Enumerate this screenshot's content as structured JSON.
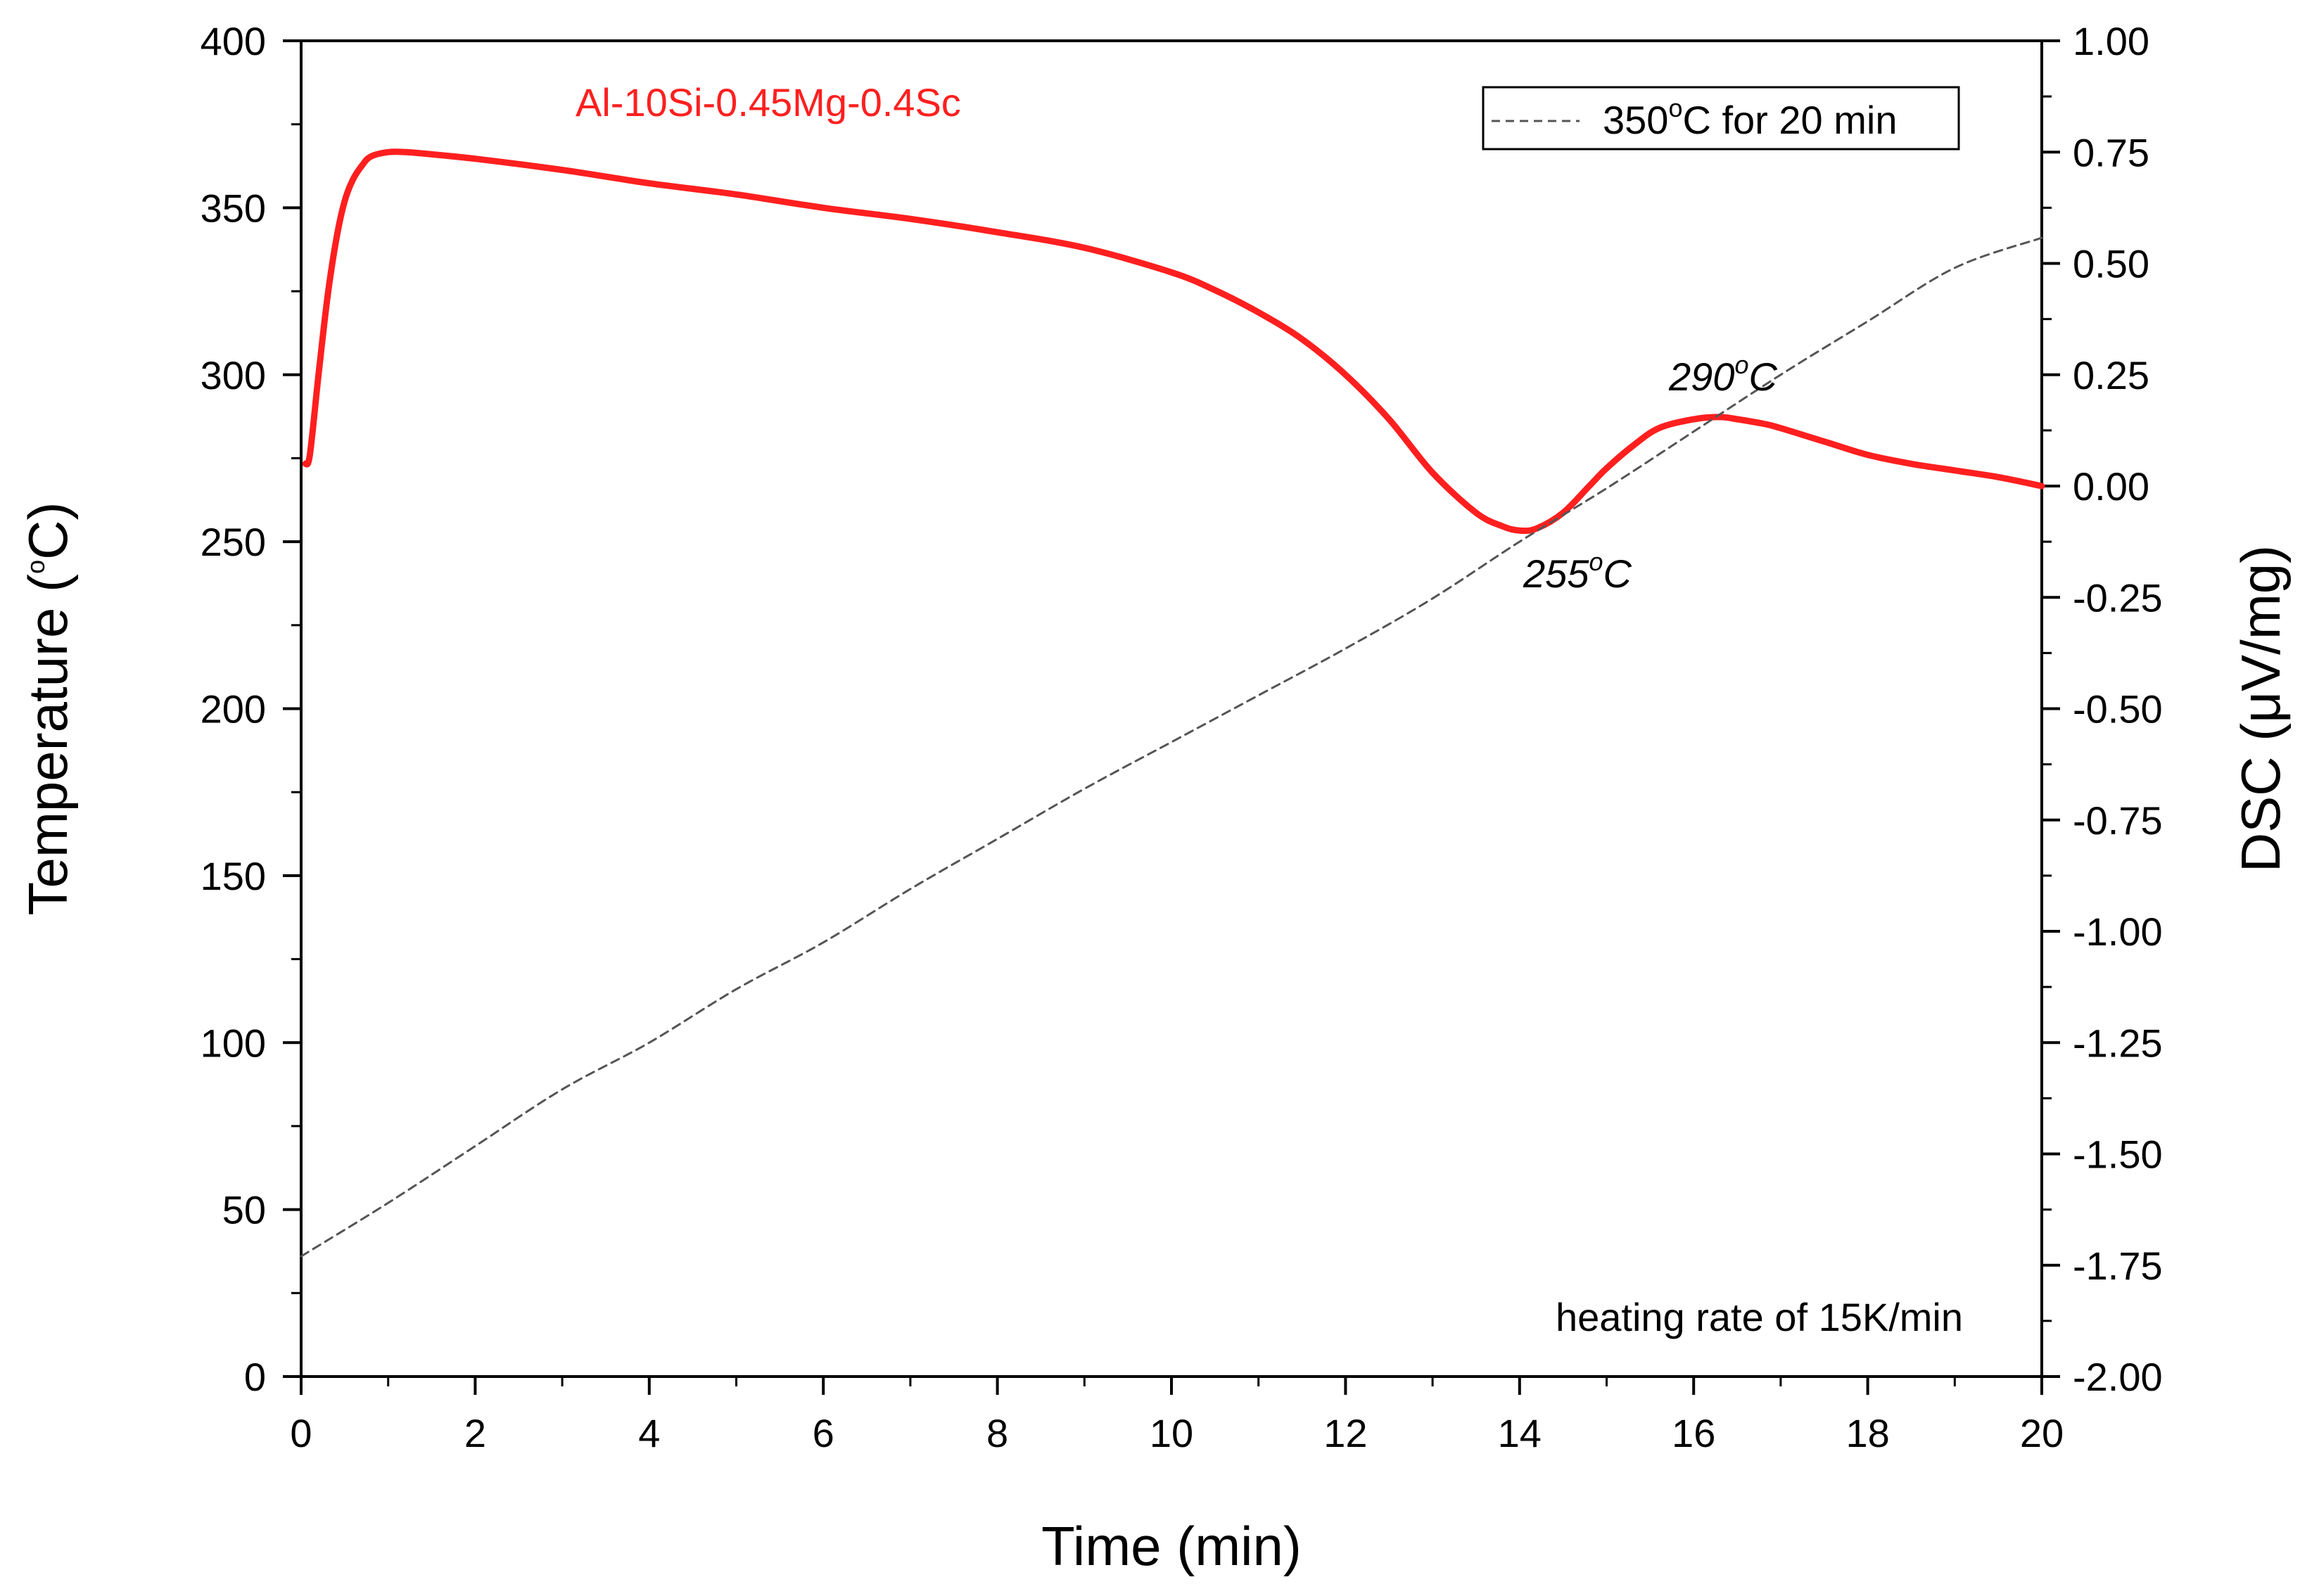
{
  "chart_data": {
    "type": "line",
    "xlabel": "Time (min)",
    "ylabel_left": {
      "prefix": "Temperature (",
      "sup": "o",
      "suffix": "C)"
    },
    "ylabel_right": "DSC (μV/mg)",
    "xlim": [
      0,
      20
    ],
    "ylim_left": [
      0,
      400
    ],
    "ylim_right": [
      -2.0,
      1.0
    ],
    "x_ticks": [
      "0",
      "2",
      "4",
      "6",
      "8",
      "10",
      "12",
      "14",
      "16",
      "18",
      "20"
    ],
    "y_left_ticks": [
      "0",
      "50",
      "100",
      "150",
      "200",
      "250",
      "300",
      "350",
      "400"
    ],
    "y_right_ticks": [
      "-2.00",
      "-1.75",
      "-1.50",
      "-1.25",
      "-1.00",
      "-0.75",
      "-0.50",
      "-0.25",
      "0.00",
      "0.25",
      "0.50",
      "0.75",
      "1.00"
    ],
    "series": [
      {
        "name": "Al-10Si-0.45Mg-0.4Sc",
        "axis": "right",
        "color": "#ff1f1f",
        "style": "solid",
        "x": [
          0.05,
          0.1,
          0.2,
          0.3,
          0.4,
          0.5,
          0.6,
          0.7,
          0.8,
          1.0,
          1.2,
          1.5,
          2,
          3,
          4,
          5,
          6,
          7,
          8,
          9,
          10,
          10.5,
          11,
          11.5,
          12,
          12.5,
          13,
          13.5,
          13.8,
          14.0,
          14.2,
          14.5,
          14.8,
          15.0,
          15.3,
          15.6,
          16.0,
          16.3,
          16.5,
          16.8,
          17.0,
          17.5,
          18.0,
          18.5,
          19.0,
          19.5,
          20.0
        ],
        "values": [
          0.05,
          0.07,
          0.25,
          0.42,
          0.55,
          0.64,
          0.69,
          0.72,
          0.74,
          0.75,
          0.75,
          0.745,
          0.735,
          0.71,
          0.68,
          0.655,
          0.625,
          0.6,
          0.57,
          0.535,
          0.48,
          0.44,
          0.39,
          0.33,
          0.25,
          0.15,
          0.03,
          -0.06,
          -0.09,
          -0.1,
          -0.095,
          -0.06,
          0.0,
          0.04,
          0.09,
          0.13,
          0.15,
          0.155,
          0.15,
          0.14,
          0.13,
          0.1,
          0.07,
          0.05,
          0.035,
          0.02,
          0.0
        ]
      },
      {
        "name": "350°C for 20 min",
        "axis": "left",
        "color": "#555555",
        "style": "dashed",
        "x": [
          0,
          1,
          2,
          3,
          4,
          5,
          6,
          7,
          8,
          9,
          10,
          11,
          12,
          13,
          14,
          15,
          16,
          17,
          18,
          19,
          20
        ],
        "values": [
          36,
          52,
          69,
          86,
          100,
          116,
          130,
          146,
          161,
          176,
          190,
          204,
          218,
          233,
          250,
          266,
          283,
          300,
          316,
          332,
          341
        ]
      }
    ],
    "annotations": [
      {
        "x": 14.1,
        "y_right": -0.1,
        "prefix": "255",
        "sup": "o",
        "suffix": "C"
      },
      {
        "x": 16.4,
        "y_right": 0.155,
        "prefix": "290",
        "sup": "o",
        "suffix": "C"
      }
    ],
    "series_label_text": "Al-10Si-0.45Mg-0.4Sc",
    "legend": {
      "position": "top-right",
      "prefix": "350",
      "sup": "o",
      "suffix": "C for 20 min"
    },
    "note": "heating rate of 15K/min",
    "grid": false
  }
}
